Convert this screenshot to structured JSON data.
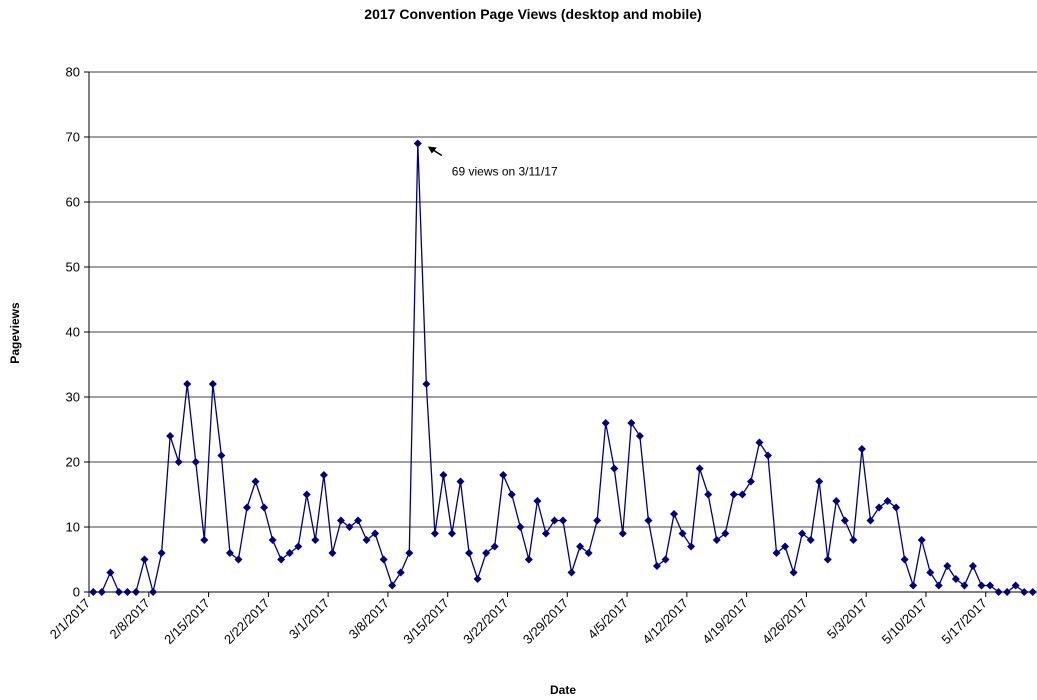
{
  "chart_data": {
    "type": "line",
    "title": "2017 Convention Page Views (desktop and mobile)",
    "xlabel": "Date",
    "ylabel": "Pageviews",
    "ylim": [
      0,
      80
    ],
    "yticks": [
      0,
      10,
      20,
      30,
      40,
      50,
      60,
      70,
      80
    ],
    "grid": "horizontal",
    "x_tick_labels": [
      "2/1/2017",
      "2/8/2017",
      "2/15/2017",
      "2/22/2017",
      "3/1/2017",
      "3/8/2017",
      "3/15/2017",
      "3/22/2017",
      "3/29/2017",
      "4/5/2017",
      "4/12/2017",
      "4/19/2017",
      "4/26/2017",
      "5/3/2017",
      "5/10/2017",
      "5/17/2017"
    ],
    "x_start": "2/1/2017",
    "x_end": "5/24/2017",
    "series": [
      {
        "color": "#00007f",
        "marker": "diamond",
        "values": [
          0,
          0,
          3,
          0,
          0,
          0,
          5,
          0,
          6,
          24,
          20,
          32,
          20,
          8,
          32,
          21,
          6,
          5,
          13,
          17,
          13,
          8,
          5,
          6,
          7,
          15,
          8,
          18,
          6,
          11,
          10,
          11,
          8,
          9,
          5,
          1,
          3,
          6,
          69,
          32,
          9,
          18,
          9,
          17,
          6,
          2,
          6,
          7,
          18,
          15,
          10,
          5,
          14,
          9,
          11,
          11,
          3,
          7,
          6,
          11,
          26,
          19,
          9,
          26,
          24,
          11,
          4,
          5,
          12,
          9,
          7,
          19,
          15,
          8,
          9,
          15,
          15,
          17,
          23,
          21,
          6,
          7,
          3,
          9,
          8,
          17,
          5,
          14,
          11,
          8,
          22,
          11,
          13,
          14,
          13,
          5,
          1,
          8,
          3,
          1,
          4,
          2,
          1,
          4,
          1,
          1,
          0,
          0,
          1,
          0,
          0
        ]
      }
    ],
    "annotations": [
      {
        "text": "69 views on 3/11/17",
        "x": "3/11/2017",
        "y": 69
      }
    ]
  }
}
